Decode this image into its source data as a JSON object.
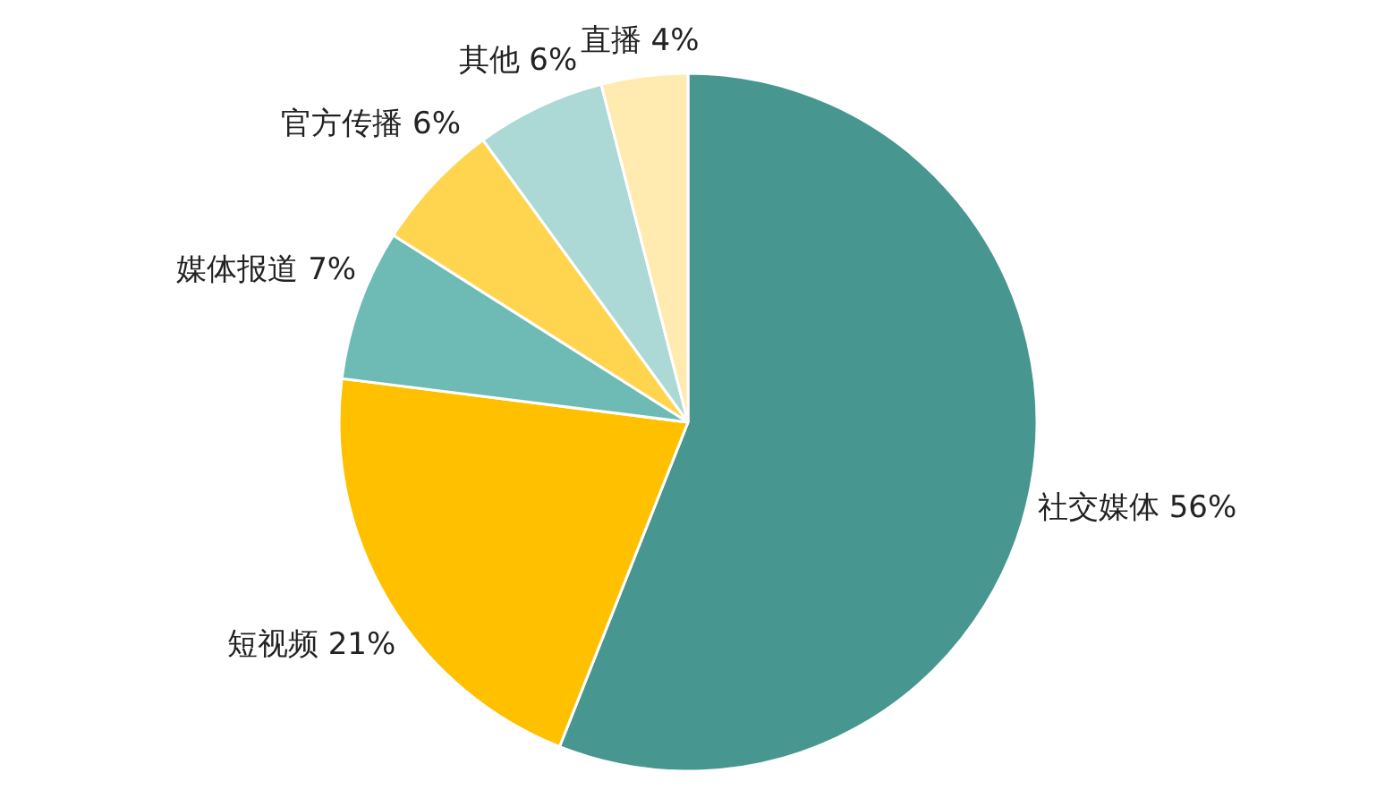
{
  "chart_data": {
    "type": "pie",
    "categories": [
      "社交媒体",
      "短视频",
      "媒体报道",
      "官方传播",
      "其他",
      "直播"
    ],
    "values": [
      56,
      21,
      7,
      6,
      6,
      4
    ],
    "value_labels": [
      "56%",
      "21%",
      "7%",
      "6%",
      "6%",
      "4%"
    ],
    "colors": [
      "#479690",
      "#ffc000",
      "#6dbbb4",
      "#ffd54f",
      "#acd8d5",
      "#ffeab0"
    ]
  }
}
